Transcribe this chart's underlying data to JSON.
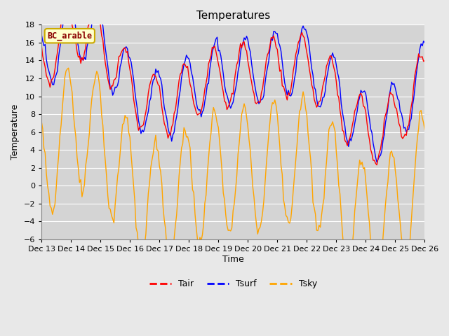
{
  "title": "Temperatures",
  "xlabel": "Time",
  "ylabel": "Temperature",
  "ylim": [
    -6,
    18
  ],
  "xlim": [
    0,
    312
  ],
  "yticks": [
    -6,
    -4,
    -2,
    0,
    2,
    4,
    6,
    8,
    10,
    12,
    14,
    16,
    18
  ],
  "xtick_labels": [
    "Dec 13",
    "Dec 14",
    "Dec 15",
    "Dec 16",
    "Dec 17",
    "Dec 18",
    "Dec 19",
    "Dec 20",
    "Dec 21",
    "Dec 22",
    "Dec 23",
    "Dec 24",
    "Dec 25",
    "Dec 26"
  ],
  "xtick_positions": [
    0,
    24,
    48,
    72,
    96,
    120,
    144,
    168,
    192,
    216,
    240,
    264,
    288,
    312
  ],
  "legend_label": "BC_arable",
  "line_colors": [
    "red",
    "blue",
    "orange"
  ],
  "line_labels": [
    "Tair",
    "Tsurf",
    "Tsky"
  ],
  "bg_color": "#e8e8e8",
  "plot_bg_color": "#d4d4d4",
  "title_fontsize": 11,
  "label_fontsize": 9,
  "tick_fontsize": 8,
  "figsize": [
    6.4,
    4.8
  ],
  "dpi": 100
}
